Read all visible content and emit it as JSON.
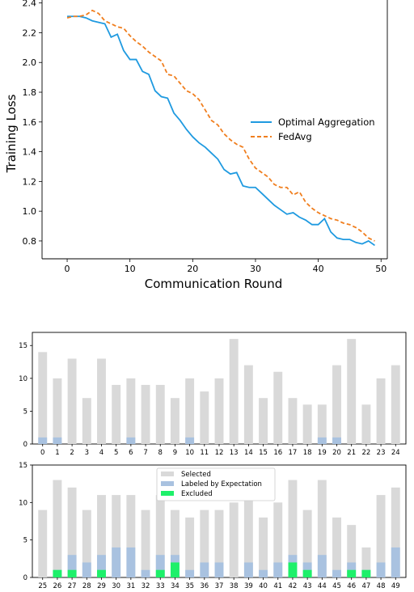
{
  "chart_data": [
    {
      "type": "line",
      "xlabel": "Communication Round",
      "ylabel": "Training Loss",
      "xlim": [
        -4,
        51
      ],
      "ylim": [
        0.68,
        2.42
      ],
      "xticks": [
        "0",
        "10",
        "20",
        "30",
        "40",
        "50"
      ],
      "yticks": [
        "0.8",
        "1.0",
        "1.2",
        "1.4",
        "1.6",
        "1.8",
        "2.0",
        "2.2",
        "2.4"
      ],
      "grid": false,
      "legend_position": "center-right",
      "x": [
        0,
        1,
        2,
        3,
        4,
        5,
        6,
        7,
        8,
        9,
        10,
        11,
        12,
        13,
        14,
        15,
        16,
        17,
        18,
        19,
        20,
        21,
        22,
        23,
        24,
        25,
        26,
        27,
        28,
        29,
        30,
        31,
        32,
        33,
        34,
        35,
        36,
        37,
        38,
        39,
        40,
        41,
        42,
        43,
        44,
        45,
        46,
        47,
        48,
        49
      ],
      "series": [
        {
          "name": "Optimal Aggregation",
          "color": "#1f9ae0",
          "style": "solid",
          "values": [
            2.31,
            2.31,
            2.31,
            2.3,
            2.28,
            2.27,
            2.26,
            2.17,
            2.19,
            2.08,
            2.02,
            2.02,
            1.94,
            1.92,
            1.81,
            1.77,
            1.76,
            1.66,
            1.61,
            1.55,
            1.5,
            1.46,
            1.43,
            1.39,
            1.35,
            1.28,
            1.25,
            1.26,
            1.17,
            1.16,
            1.16,
            1.12,
            1.08,
            1.04,
            1.01,
            0.98,
            0.99,
            0.96,
            0.94,
            0.91,
            0.91,
            0.95,
            0.86,
            0.82,
            0.81,
            0.81,
            0.79,
            0.78,
            0.8,
            0.77
          ]
        },
        {
          "name": "FedAvg",
          "color": "#f07e1e",
          "style": "dashed",
          "values": [
            2.3,
            2.31,
            2.31,
            2.32,
            2.35,
            2.33,
            2.28,
            2.26,
            2.24,
            2.23,
            2.18,
            2.14,
            2.11,
            2.07,
            2.04,
            2.01,
            1.92,
            1.91,
            1.86,
            1.81,
            1.79,
            1.75,
            1.68,
            1.61,
            1.58,
            1.52,
            1.48,
            1.45,
            1.43,
            1.35,
            1.29,
            1.26,
            1.23,
            1.18,
            1.16,
            1.16,
            1.11,
            1.13,
            1.06,
            1.02,
            0.99,
            0.97,
            0.95,
            0.94,
            0.92,
            0.91,
            0.89,
            0.86,
            0.82,
            0.8
          ]
        }
      ]
    },
    {
      "type": "bar",
      "stacked": "overlay",
      "xlim": [
        -0.7,
        24.7
      ],
      "ylim": [
        0,
        17
      ],
      "yticks": [
        "0",
        "5",
        "10",
        "15"
      ],
      "categories": [
        "0",
        "1",
        "2",
        "3",
        "4",
        "5",
        "6",
        "7",
        "8",
        "9",
        "10",
        "11",
        "12",
        "13",
        "14",
        "15",
        "16",
        "17",
        "18",
        "19",
        "20",
        "21",
        "22",
        "23",
        "24"
      ],
      "series": [
        {
          "name": "Selected",
          "color": "#d9d9d9",
          "values": [
            14,
            10,
            13,
            7,
            13,
            9,
            10,
            9,
            9,
            7,
            10,
            8,
            10,
            16,
            12,
            7,
            11,
            7,
            6,
            6,
            12,
            16,
            6,
            10,
            12
          ]
        },
        {
          "name": "Labeled by Expectation",
          "color": "#a9c2e0",
          "values": [
            1,
            1,
            0,
            0,
            0,
            0,
            1,
            0,
            0,
            0,
            1,
            0,
            0,
            0,
            0,
            0,
            0,
            0,
            0,
            1,
            1,
            0,
            0,
            0,
            0
          ]
        },
        {
          "name": "Excluded",
          "color": "#1ef06a",
          "values": [
            0,
            0,
            0,
            0,
            0,
            0,
            0,
            0,
            0,
            0,
            0,
            0,
            0,
            0,
            0,
            0,
            0,
            0,
            0,
            0,
            0,
            0,
            0,
            0,
            0
          ]
        }
      ]
    },
    {
      "type": "bar",
      "stacked": "overlay",
      "xlim": [
        -0.7,
        24.7
      ],
      "ylim": [
        0,
        15
      ],
      "yticks": [
        "0",
        "5",
        "10",
        "15"
      ],
      "legend_position": "top-center",
      "categories": [
        "25",
        "26",
        "27",
        "28",
        "29",
        "30",
        "31",
        "32",
        "33",
        "34",
        "35",
        "36",
        "37",
        "38",
        "39",
        "40",
        "41",
        "42",
        "43",
        "44",
        "45",
        "46",
        "47",
        "48",
        "49"
      ],
      "series": [
        {
          "name": "Selected",
          "color": "#d9d9d9",
          "values": [
            9,
            13,
            12,
            9,
            11,
            11,
            11,
            9,
            11,
            9,
            8,
            9,
            9,
            10,
            11,
            8,
            10,
            13,
            9,
            13,
            8,
            7,
            4,
            11,
            12
          ]
        },
        {
          "name": "Labeled by Expectation",
          "color": "#a9c2e0",
          "values": [
            0,
            1,
            3,
            2,
            3,
            4,
            4,
            1,
            3,
            3,
            1,
            2,
            2,
            0,
            2,
            1,
            2,
            3,
            2,
            3,
            1,
            2,
            1,
            2,
            4
          ]
        },
        {
          "name": "Excluded",
          "color": "#1ef06a",
          "values": [
            0,
            1,
            1,
            0,
            1,
            0,
            0,
            0,
            1,
            2,
            0,
            0,
            0,
            0,
            0,
            0,
            0,
            2,
            1,
            0,
            0,
            1,
            1,
            0,
            0
          ]
        }
      ]
    }
  ]
}
